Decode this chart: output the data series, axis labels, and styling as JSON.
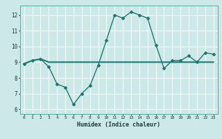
{
  "xlabel": "Humidex (Indice chaleur)",
  "ylabel": "",
  "bg_color": "#cce8e8",
  "line_color": "#1a7a6e",
  "grid_color": "#ffffff",
  "xlim": [
    -0.5,
    23.5
  ],
  "ylim": [
    5.7,
    12.6
  ],
  "xticks": [
    0,
    1,
    2,
    3,
    4,
    5,
    6,
    7,
    8,
    9,
    10,
    11,
    12,
    13,
    14,
    15,
    16,
    17,
    18,
    19,
    20,
    21,
    22,
    23
  ],
  "yticks": [
    6,
    7,
    8,
    9,
    10,
    11,
    12
  ],
  "line1_x": [
    0,
    1,
    2,
    3,
    4,
    5,
    6,
    7,
    8,
    9,
    10,
    11,
    12,
    13,
    14,
    15,
    16,
    17,
    18,
    19,
    20,
    21,
    22,
    23
  ],
  "line1_y": [
    8.9,
    9.1,
    9.2,
    9.0,
    9.0,
    9.0,
    9.0,
    9.0,
    9.0,
    9.0,
    9.0,
    9.0,
    9.0,
    9.0,
    9.0,
    9.0,
    9.0,
    9.0,
    9.0,
    9.0,
    9.0,
    9.0,
    9.0,
    9.0
  ],
  "line2_x": [
    0,
    1,
    2,
    3,
    4,
    5,
    6,
    7,
    8,
    9,
    10,
    11,
    12,
    13,
    14,
    15,
    16,
    17,
    18,
    19,
    20,
    21,
    22,
    23
  ],
  "line2_y": [
    8.9,
    9.1,
    9.2,
    8.7,
    7.6,
    7.4,
    6.3,
    7.0,
    7.5,
    8.8,
    10.4,
    12.0,
    11.8,
    12.2,
    12.0,
    11.8,
    10.1,
    8.6,
    9.1,
    9.1,
    9.4,
    9.0,
    9.6,
    9.5
  ]
}
